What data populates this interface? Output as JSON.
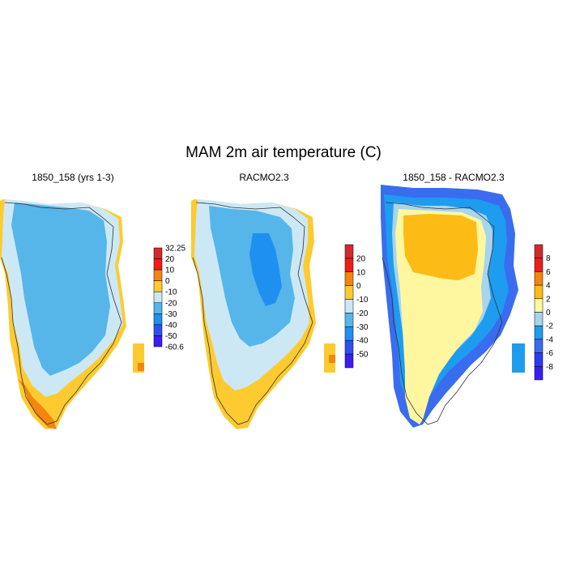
{
  "figure": {
    "title": "MAM 2m air temperature (C)"
  },
  "panels": [
    {
      "title": "1850_158 (yrs 1-3)",
      "colorbar": {
        "colors": [
          "#d22a2a",
          "#ef1c1c",
          "#f5850e",
          "#fdcb2f",
          "#cde8f5",
          "#56b6ea",
          "#1e90f0",
          "#3050ee",
          "#3b1df5"
        ],
        "labels": [
          "32.25",
          "20",
          "10",
          "0",
          "-10",
          "-20",
          "-30",
          "-40",
          "-50",
          "-60.6"
        ]
      }
    },
    {
      "title": "RACMO2.3",
      "colorbar": {
        "colors": [
          "#d22a2a",
          "#ef1c1c",
          "#f5850e",
          "#fdcb2f",
          "#cde8f5",
          "#56b6ea",
          "#1e90f0",
          "#3050ee",
          "#3b1df5"
        ],
        "labels": [
          "20",
          "10",
          "0",
          "-10",
          "-20",
          "-30",
          "-40",
          "-50"
        ]
      }
    },
    {
      "title": "1850_158 - RACMO2.3",
      "colorbar": {
        "colors": [
          "#d22a2a",
          "#ef1c1c",
          "#f5850e",
          "#fdbb16",
          "#fef7a0",
          "#a6d5ec",
          "#1e9cf0",
          "#3a6cf0",
          "#2a3af5",
          "#3b1df5"
        ],
        "labels": [
          "8",
          "6",
          "4",
          "2",
          "0",
          "-2",
          "-4",
          "-6",
          "-8"
        ]
      }
    }
  ]
}
